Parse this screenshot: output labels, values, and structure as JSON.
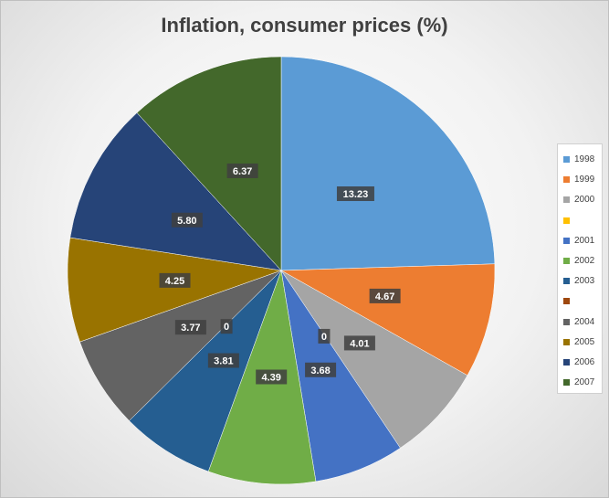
{
  "chart_data": {
    "type": "pie",
    "title": "Inflation, consumer prices (%)",
    "categories": [
      "1998",
      "1999",
      "2000",
      "",
      "2001",
      "2002",
      "2003",
      "",
      "2004",
      "2005",
      "2006",
      "2007"
    ],
    "values": [
      13.23,
      4.67,
      4.01,
      0,
      3.68,
      4.39,
      3.81,
      0,
      3.77,
      4.25,
      5.8,
      6.37
    ],
    "data_labels": [
      "13.23",
      "4.67",
      "4.01",
      "0",
      "3.68",
      "4.39",
      "3.81",
      "0",
      "3.77",
      "4.25",
      "5.80",
      "6.37"
    ],
    "colors": [
      "#5b9bd5",
      "#ed7d31",
      "#a5a5a5",
      "#ffc000",
      "#4472c4",
      "#70ad47",
      "#255e91",
      "#9e480e",
      "#636363",
      "#997300",
      "#264478",
      "#43682b"
    ],
    "legend": {
      "position": "right",
      "entries": [
        "1998",
        "1999",
        "2000",
        "",
        "2001",
        "2002",
        "2003",
        "",
        "2004",
        "2005",
        "2006",
        "2007"
      ]
    }
  }
}
